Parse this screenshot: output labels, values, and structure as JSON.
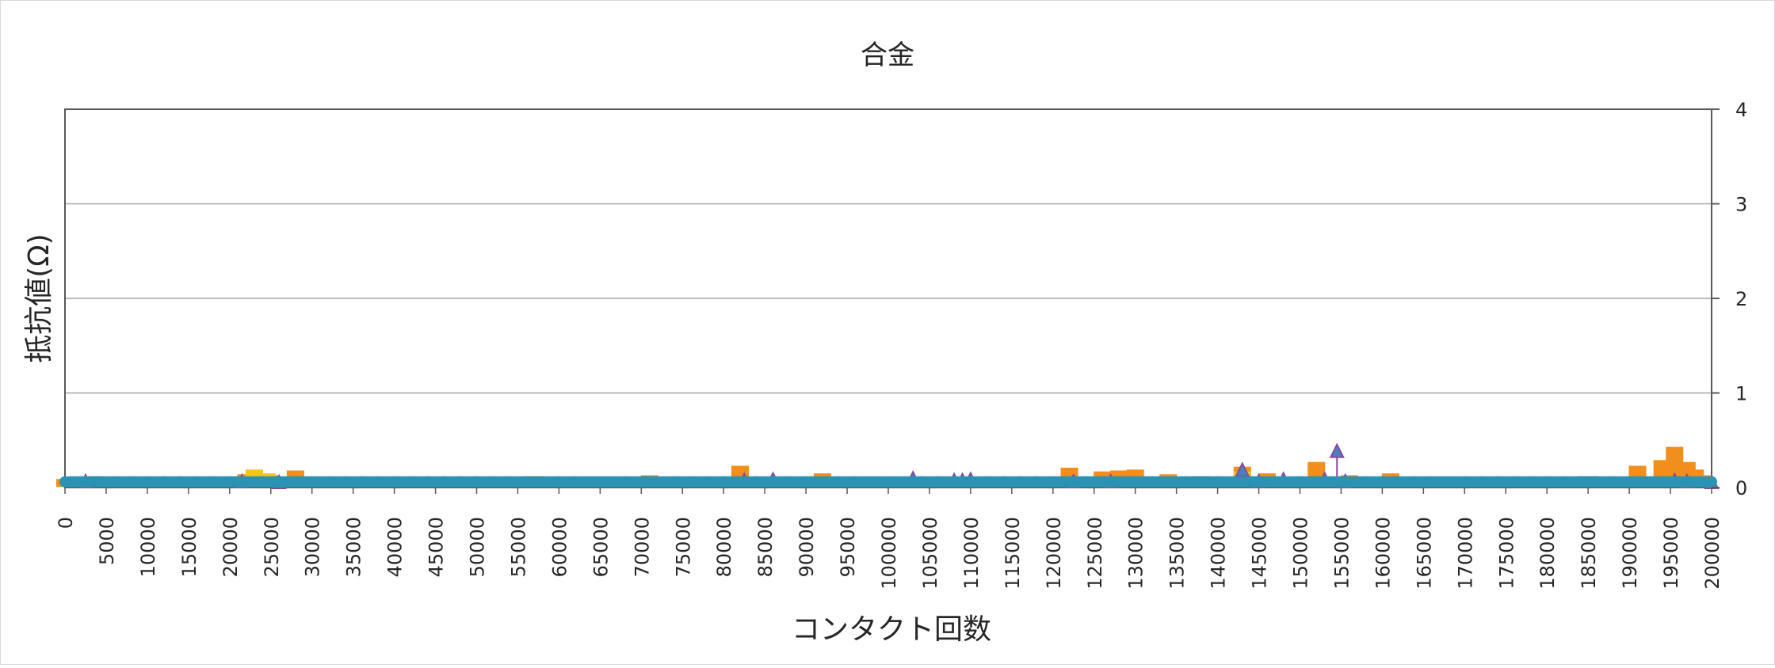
{
  "chart_data": {
    "type": "scatter",
    "title": "合金",
    "xlabel": "コンタクト回数",
    "ylabel": "抵抗値(Ω)",
    "xlim": [
      0,
      200000
    ],
    "ylim": [
      0,
      4
    ],
    "x_ticks": [
      "0",
      "5000",
      "10000",
      "15000",
      "20000",
      "25000",
      "30000",
      "35000",
      "40000",
      "45000",
      "50000",
      "55000",
      "60000",
      "65000",
      "70000",
      "75000",
      "80000",
      "85000",
      "90000",
      "95000",
      "100000",
      "105000",
      "110000",
      "115000",
      "120000",
      "125000",
      "130000",
      "135000",
      "140000",
      "145000",
      "150000",
      "155000",
      "160000",
      "165000",
      "170000",
      "175000",
      "180000",
      "185000",
      "190000",
      "195000",
      "200000"
    ],
    "y_ticks": [
      "0",
      "1",
      "2",
      "3",
      "4"
    ],
    "y_axis_side": "right",
    "grid": true,
    "legend": "none",
    "series": [
      {
        "marker": "square",
        "color": "#f28e1c",
        "values_note": "",
        "x": [
          0,
          3500,
          7500,
          11000,
          15000,
          19000,
          22000,
          25000,
          28000,
          55000,
          57000,
          62000,
          67000,
          71000,
          82000,
          92000,
          96000,
          122000,
          126000,
          128000,
          130000,
          134000,
          138000,
          143000,
          146000,
          152000,
          156000,
          161000,
          181000,
          185000,
          191000,
          194000,
          195500,
          197000,
          198000,
          199000
        ],
        "y": [
          0.04,
          0.07,
          0.05,
          0.04,
          0.05,
          0.05,
          0.09,
          0.08,
          0.13,
          0.06,
          0.07,
          0.05,
          0.05,
          0.08,
          0.18,
          0.1,
          0.06,
          0.16,
          0.12,
          0.13,
          0.14,
          0.09,
          0.07,
          0.17,
          0.1,
          0.22,
          0.08,
          0.1,
          0.06,
          0.07,
          0.18,
          0.24,
          0.38,
          0.22,
          0.14,
          0.08
        ]
      },
      {
        "marker": "square",
        "color": "#f5c518",
        "x": [
          23000,
          24500,
          143000
        ],
        "y": [
          0.14,
          0.1,
          0.12
        ]
      },
      {
        "marker": "triangle",
        "color": "#8a4a9c",
        "x": [
          2500,
          21500,
          26000,
          82500,
          86000,
          103000,
          108000,
          109000,
          110000,
          122500,
          127000,
          143000,
          145000,
          148000,
          153000,
          154500,
          155500,
          195500,
          197000,
          200000
        ],
        "y": [
          0.06,
          0.06,
          0.05,
          0.07,
          0.08,
          0.09,
          0.07,
          0.07,
          0.08,
          0.06,
          0.06,
          0.18,
          0.06,
          0.08,
          0.08,
          0.38,
          0.06,
          0.07,
          0.06,
          0.05
        ]
      },
      {
        "marker": "circle",
        "color": "#2a93b4",
        "x_range": [
          0,
          200000
        ],
        "baseline": 0.01
      }
    ]
  }
}
